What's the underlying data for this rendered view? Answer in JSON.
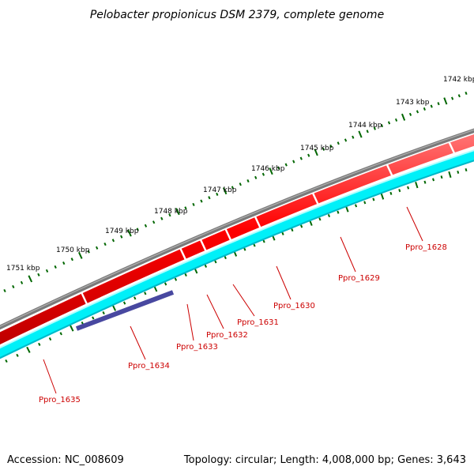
{
  "title": "Pelobacter propionicus DSM 2379, complete genome",
  "accession": "Accession: NC_008609",
  "topology": "Topology: circular; Length: 4,008,000 bp; Genes: 3,643",
  "kbp_labels": [
    {
      "label": "1742 kbp",
      "kbp": 1742
    },
    {
      "label": "1743 kbp",
      "kbp": 1743
    },
    {
      "label": "1744 kbp",
      "kbp": 1744
    },
    {
      "label": "1745 kbp",
      "kbp": 1745
    },
    {
      "label": "1746 kbp",
      "kbp": 1746
    },
    {
      "label": "1747 kbp",
      "kbp": 1747
    },
    {
      "label": "1748 kbp",
      "kbp": 1748
    },
    {
      "label": "1749 kbp",
      "kbp": 1749
    },
    {
      "label": "1750 kbp",
      "kbp": 1750
    },
    {
      "label": "1751 kbp",
      "kbp": 1751
    }
  ],
  "genes": [
    {
      "name": "Ppro_1628",
      "strand": "reverse"
    },
    {
      "name": "Ppro_1629",
      "strand": "reverse"
    },
    {
      "name": "Ppro_1630",
      "strand": "reverse"
    },
    {
      "name": "Ppro_1631",
      "strand": "reverse"
    },
    {
      "name": "Ppro_1632",
      "strand": "reverse"
    },
    {
      "name": "Ppro_1633",
      "strand": "reverse"
    },
    {
      "name": "Ppro_1634",
      "strand": "reverse"
    },
    {
      "name": "Ppro_1635",
      "strand": "reverse"
    }
  ],
  "colors": {
    "backbone": "#808080",
    "forward_cds": "#ff0000",
    "reverse_cds": "#00ffff",
    "highlight_gene": "#4040a0",
    "ticks": "#006600",
    "gene_label": "#cc0000"
  }
}
